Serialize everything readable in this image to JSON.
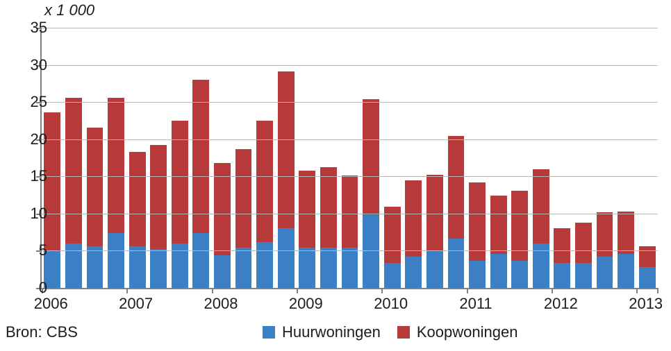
{
  "chart": {
    "type": "stacked-bar",
    "y_axis_title": "x 1 000",
    "ylim": [
      0,
      35
    ],
    "ytick_step": 5,
    "y_ticks": [
      0,
      5,
      10,
      15,
      20,
      25,
      30,
      35
    ],
    "year_labels": [
      "2006",
      "2007",
      "2008",
      "2009",
      "2010",
      "2011",
      "2012",
      "2013"
    ],
    "bars_per_year": 4,
    "series": [
      {
        "key": "huur",
        "label": "Huurwoningen",
        "color": "#3b7fc4"
      },
      {
        "key": "koop",
        "label": "Koopwoningen",
        "color": "#b73a3a"
      }
    ],
    "background_color": "#ffffff",
    "grid_color": "#b8b8b8",
    "axis_color": "#808080",
    "label_color": "#1d1d1d",
    "label_fontsize": 22,
    "bar_gap_ratio": 0.22,
    "data": [
      {
        "huur": 5.0,
        "koop": 18.6
      },
      {
        "huur": 6.0,
        "koop": 19.6
      },
      {
        "huur": 5.6,
        "koop": 16.0
      },
      {
        "huur": 7.4,
        "koop": 18.2
      },
      {
        "huur": 5.6,
        "koop": 12.7
      },
      {
        "huur": 5.2,
        "koop": 14.0
      },
      {
        "huur": 6.0,
        "koop": 16.5
      },
      {
        "huur": 7.4,
        "koop": 20.6
      },
      {
        "huur": 4.4,
        "koop": 12.4
      },
      {
        "huur": 5.4,
        "koop": 13.3
      },
      {
        "huur": 6.2,
        "koop": 16.3
      },
      {
        "huur": 8.0,
        "koop": 21.1
      },
      {
        "huur": 5.4,
        "koop": 10.4
      },
      {
        "huur": 5.4,
        "koop": 10.8
      },
      {
        "huur": 5.4,
        "koop": 9.7
      },
      {
        "huur": 9.8,
        "koop": 15.6
      },
      {
        "huur": 3.4,
        "koop": 7.5
      },
      {
        "huur": 4.2,
        "koop": 10.3
      },
      {
        "huur": 5.0,
        "koop": 10.2
      },
      {
        "huur": 6.6,
        "koop": 13.8
      },
      {
        "huur": 3.6,
        "koop": 10.6
      },
      {
        "huur": 4.6,
        "koop": 7.8
      },
      {
        "huur": 3.6,
        "koop": 9.5
      },
      {
        "huur": 6.0,
        "koop": 10.0
      },
      {
        "huur": 3.4,
        "koop": 4.6
      },
      {
        "huur": 3.4,
        "koop": 5.4
      },
      {
        "huur": 4.2,
        "koop": 6.0
      },
      {
        "huur": 4.6,
        "koop": 5.7
      },
      {
        "huur": 2.8,
        "koop": 2.8
      }
    ]
  },
  "source_label": "Bron: CBS"
}
